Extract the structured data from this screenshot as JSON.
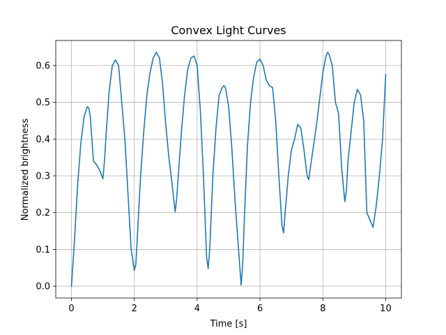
{
  "chart_data": {
    "type": "line",
    "title": "Convex Light Curves",
    "xlabel": "Time [s]",
    "ylabel": "Normalized brightness",
    "xlim": [
      -0.5,
      10.5
    ],
    "ylim": [
      -0.032,
      0.668
    ],
    "xticks": [
      0,
      2,
      4,
      6,
      8,
      10
    ],
    "xtick_labels": [
      "0",
      "2",
      "4",
      "6",
      "8",
      "10"
    ],
    "yticks": [
      0.0,
      0.1,
      0.2,
      0.3,
      0.4,
      0.5,
      0.6
    ],
    "ytick_labels": [
      "0.0",
      "0.1",
      "0.2",
      "0.3",
      "0.4",
      "0.5",
      "0.6"
    ],
    "grid": true,
    "line_color": "#1f77b4",
    "grid_color": "#b0b0b0",
    "series": [
      {
        "x": [
          0.0,
          0.1,
          0.2,
          0.3,
          0.4,
          0.5,
          0.55,
          0.6,
          0.7,
          0.8,
          0.9,
          1.0,
          1.05,
          1.1,
          1.2,
          1.3,
          1.4,
          1.5,
          1.6,
          1.7,
          1.8,
          1.9,
          2.0,
          2.05,
          2.1,
          2.2,
          2.3,
          2.4,
          2.5,
          2.6,
          2.7,
          2.8,
          2.9,
          3.0,
          3.1,
          3.2,
          3.3,
          3.35,
          3.4,
          3.5,
          3.6,
          3.7,
          3.8,
          3.9,
          4.0,
          4.1,
          4.2,
          4.3,
          4.35,
          4.4,
          4.5,
          4.6,
          4.7,
          4.8,
          4.85,
          4.9,
          5.0,
          5.1,
          5.2,
          5.3,
          5.4,
          5.45,
          5.5,
          5.6,
          5.7,
          5.8,
          5.9,
          6.0,
          6.1,
          6.2,
          6.3,
          6.4,
          6.5,
          6.6,
          6.7,
          6.75,
          6.8,
          6.9,
          7.0,
          7.1,
          7.2,
          7.3,
          7.4,
          7.5,
          7.55,
          7.6,
          7.7,
          7.8,
          7.9,
          8.0,
          8.1,
          8.15,
          8.2,
          8.3,
          8.4,
          8.5,
          8.6,
          8.7,
          8.75,
          8.8,
          8.9,
          9.0,
          9.1,
          9.2,
          9.3,
          9.4,
          9.5,
          9.6,
          9.7,
          9.8,
          9.9,
          10.0
        ],
        "y": [
          0.0,
          0.13,
          0.28,
          0.39,
          0.46,
          0.488,
          0.485,
          0.46,
          0.34,
          0.33,
          0.315,
          0.292,
          0.34,
          0.41,
          0.53,
          0.6,
          0.615,
          0.6,
          0.5,
          0.4,
          0.25,
          0.1,
          0.043,
          0.06,
          0.14,
          0.3,
          0.42,
          0.52,
          0.58,
          0.62,
          0.636,
          0.62,
          0.55,
          0.44,
          0.35,
          0.28,
          0.202,
          0.24,
          0.3,
          0.42,
          0.52,
          0.59,
          0.62,
          0.626,
          0.6,
          0.48,
          0.3,
          0.08,
          0.048,
          0.1,
          0.3,
          0.43,
          0.52,
          0.54,
          0.545,
          0.54,
          0.49,
          0.38,
          0.24,
          0.12,
          0.003,
          0.06,
          0.18,
          0.38,
          0.5,
          0.57,
          0.61,
          0.617,
          0.6,
          0.56,
          0.545,
          0.54,
          0.45,
          0.3,
          0.165,
          0.145,
          0.2,
          0.3,
          0.37,
          0.4,
          0.44,
          0.43,
          0.37,
          0.3,
          0.29,
          0.32,
          0.38,
          0.44,
          0.51,
          0.58,
          0.625,
          0.636,
          0.63,
          0.6,
          0.5,
          0.47,
          0.32,
          0.23,
          0.26,
          0.34,
          0.42,
          0.5,
          0.535,
          0.52,
          0.45,
          0.2,
          0.18,
          0.16,
          0.22,
          0.3,
          0.4,
          0.575
        ]
      }
    ]
  }
}
